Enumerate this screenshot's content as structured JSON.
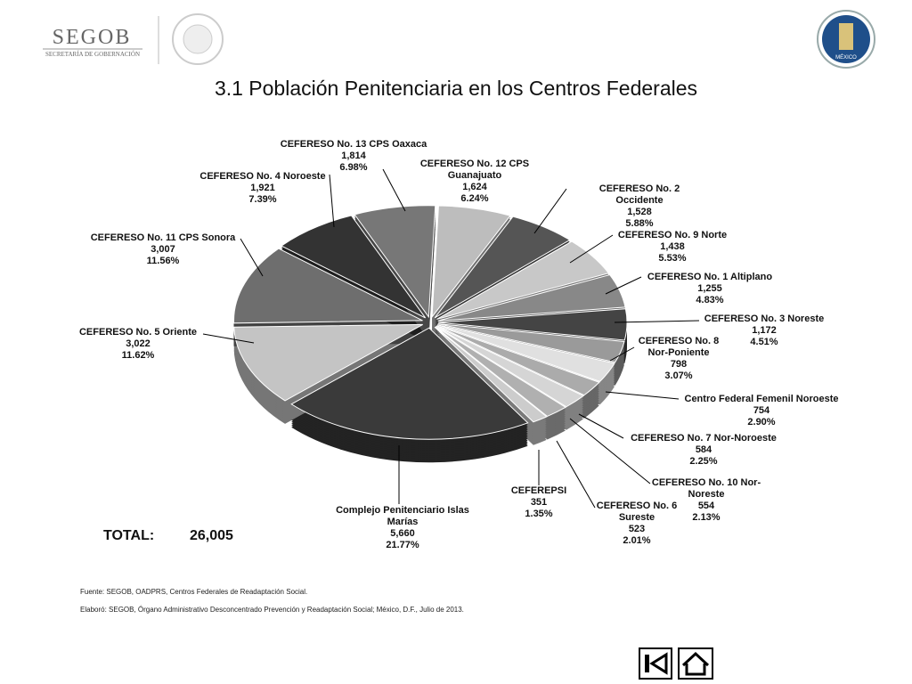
{
  "header": {
    "logo": "SEGOB",
    "logo_subtitle": "SECRETARÍA DE GOBERNACIÓN",
    "emblem": "MÉXICO"
  },
  "chart_data": {
    "type": "pie",
    "title": "3.1 Población Penitenciaria en los Centros Federales",
    "categories": [
      "CEFERESO No. 12 CPS Guanajuato",
      "CEFERESO No. 2 Occidente",
      "CEFERESO No. 9 Norte",
      "CEFERESO No. 1 Altiplano",
      "CEFERESO No. 3 Noreste",
      "CEFERESO No. 8 Nor-Poniente",
      "Centro Federal Femenil Noroeste",
      "CEFERESO No. 7 Nor-Noroeste",
      "CEFERESO No. 10 Nor-Noreste",
      "CEFERESO No. 6 Sureste",
      "CEFEREPSI",
      "Complejo Penitenciario Islas Marías",
      "CEFERESO No. 5 Oriente",
      "CEFERESO No. 11 CPS Sonora",
      "CEFERESO No. 4 Noroeste",
      "CEFERESO No. 13 CPS Oaxaca"
    ],
    "values": [
      1624,
      1528,
      1438,
      1255,
      1172,
      798,
      754,
      584,
      554,
      523,
      351,
      5660,
      3022,
      3007,
      1921,
      1814
    ],
    "value_labels": [
      "1,624",
      "1,528",
      "1,438",
      "1,255",
      "1,172",
      "798",
      "754",
      "584",
      "554",
      "523",
      "351",
      "5,660",
      "3,022",
      "3,007",
      "1,921",
      "1,814"
    ],
    "percentages": [
      6.24,
      5.88,
      5.53,
      4.83,
      4.51,
      3.07,
      2.9,
      2.25,
      2.13,
      2.01,
      1.35,
      21.77,
      11.62,
      11.56,
      7.39,
      6.98
    ],
    "percentage_labels": [
      "6.24%",
      "5.88%",
      "5.53%",
      "4.83%",
      "4.51%",
      "3.07%",
      "2.90%",
      "2.25%",
      "2.13%",
      "2.01%",
      "1.35%",
      "21.77%",
      "11.62%",
      "11.56%",
      "7.39%",
      "6.98%"
    ],
    "colors": [
      "#bdbdbd",
      "#555555",
      "#c8c8c8",
      "#888888",
      "#444444",
      "#9a9a9a",
      "#e0e0e0",
      "#ababab",
      "#d5d5d5",
      "#b0b0b0",
      "#cccccc",
      "#3a3a3a",
      "#c4c4c4",
      "#6e6e6e",
      "#333333",
      "#777777"
    ],
    "total_caption": "TOTAL:",
    "total": {
      "value": 26005,
      "label": "26,005"
    }
  },
  "footer": {
    "source": "Fuente: SEGOB, OADPRS, Centros Federales de Readaptación Social.",
    "prepared": "Elaboró: SEGOB, Órgano Administrativo Desconcentrado Prevención y Readaptación Social; México, D.F., Julio de 2013."
  }
}
